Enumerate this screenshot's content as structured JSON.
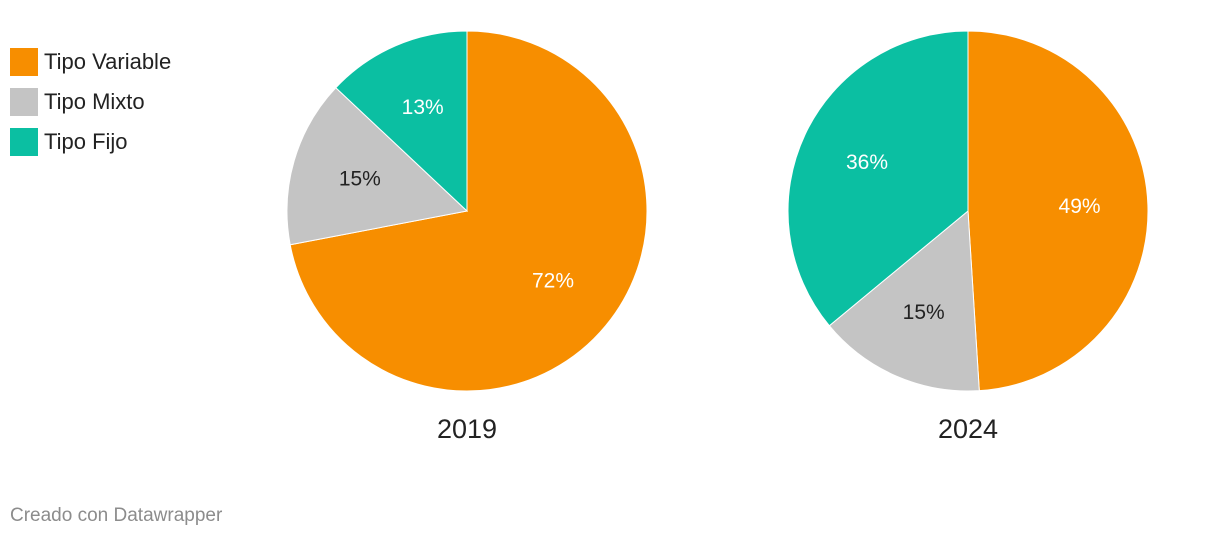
{
  "chart_data": {
    "type": "pie",
    "legend": [
      {
        "name": "Tipo Variable",
        "color": "#f78e00"
      },
      {
        "name": "Tipo Mixto",
        "color": "#c4c4c4"
      },
      {
        "name": "Tipo Fijo",
        "color": "#0bbfa2"
      }
    ],
    "charts": [
      {
        "title": "2019",
        "slices": [
          {
            "name": "Tipo Variable",
            "value": 72,
            "label": "72%",
            "color": "#f78e00",
            "label_color": "#ffffff"
          },
          {
            "name": "Tipo Mixto",
            "value": 15,
            "label": "15%",
            "color": "#c4c4c4",
            "label_color": "#222222"
          },
          {
            "name": "Tipo Fijo",
            "value": 13,
            "label": "13%",
            "color": "#0bbfa2",
            "label_color": "#ffffff"
          }
        ]
      },
      {
        "title": "2024",
        "slices": [
          {
            "name": "Tipo Variable",
            "value": 49,
            "label": "49%",
            "color": "#f78e00",
            "label_color": "#ffffff"
          },
          {
            "name": "Tipo Mixto",
            "value": 15,
            "label": "15%",
            "color": "#c4c4c4",
            "label_color": "#222222"
          },
          {
            "name": "Tipo Fijo",
            "value": 36,
            "label": "36%",
            "color": "#0bbfa2",
            "label_color": "#ffffff"
          }
        ]
      }
    ]
  },
  "footer": "Creado con Datawrapper"
}
